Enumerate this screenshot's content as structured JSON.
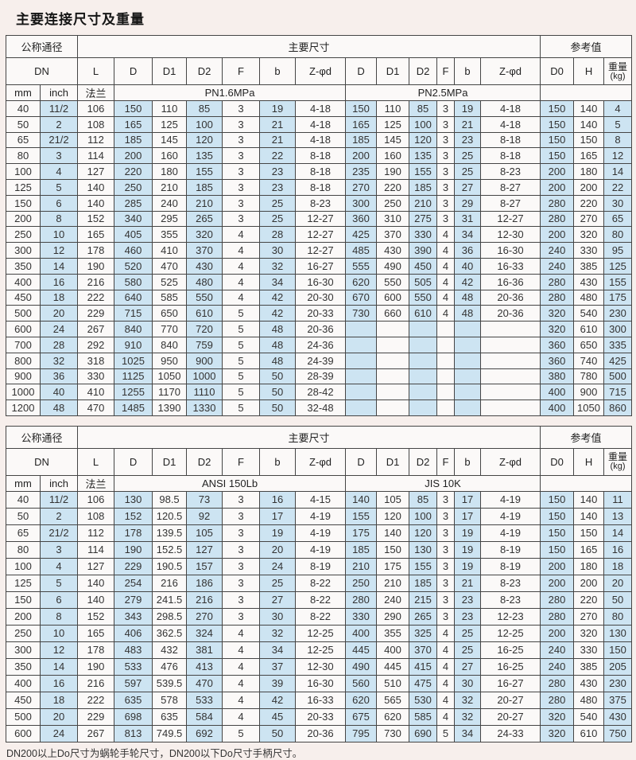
{
  "title": "主要连接尺寸及重量",
  "footnote": "DN200以上Do尺寸为蜗轮手轮尺寸，DN200以下Do尺寸手柄尺寸。",
  "colors": {
    "cell_blue": "#cde4f2",
    "cell_white": "#fbf9f8",
    "page_bg": "#f7efec",
    "border": "#454545"
  },
  "tables": [
    {
      "header": {
        "nominal_label": "公称通径",
        "main_label": "主要尺寸",
        "ref_label": "参考值",
        "dn_label": "DN",
        "mm_label": "mm",
        "inch_label": "inch",
        "flange_label": "法兰",
        "std1_label": "PN1.6MPa",
        "std2_label": "PN2.5MPa",
        "dim_labels": [
          "L",
          "D",
          "D1",
          "D2",
          "F",
          "b",
          "Z-φd",
          "D",
          "D1",
          "D2",
          "F",
          "b",
          "Z-φd",
          "D0",
          "H"
        ],
        "weight_label": "重量",
        "weight_unit": "(kg)"
      },
      "rows": [
        [
          "40",
          "11/2",
          "106",
          "150",
          "110",
          "85",
          "3",
          "19",
          "4-18",
          "150",
          "110",
          "85",
          "3",
          "19",
          "4-18",
          "150",
          "140",
          "4"
        ],
        [
          "50",
          "2",
          "108",
          "165",
          "125",
          "100",
          "3",
          "21",
          "4-18",
          "165",
          "125",
          "100",
          "3",
          "21",
          "4-18",
          "150",
          "140",
          "5"
        ],
        [
          "65",
          "21/2",
          "112",
          "185",
          "145",
          "120",
          "3",
          "21",
          "4-18",
          "185",
          "145",
          "120",
          "3",
          "23",
          "8-18",
          "150",
          "150",
          "8"
        ],
        [
          "80",
          "3",
          "114",
          "200",
          "160",
          "135",
          "3",
          "22",
          "8-18",
          "200",
          "160",
          "135",
          "3",
          "25",
          "8-18",
          "150",
          "165",
          "12"
        ],
        [
          "100",
          "4",
          "127",
          "220",
          "180",
          "155",
          "3",
          "23",
          "8-18",
          "235",
          "190",
          "155",
          "3",
          "25",
          "8-23",
          "200",
          "180",
          "14"
        ],
        [
          "125",
          "5",
          "140",
          "250",
          "210",
          "185",
          "3",
          "23",
          "8-18",
          "270",
          "220",
          "185",
          "3",
          "27",
          "8-27",
          "200",
          "200",
          "22"
        ],
        [
          "150",
          "6",
          "140",
          "285",
          "240",
          "210",
          "3",
          "25",
          "8-23",
          "300",
          "250",
          "210",
          "3",
          "29",
          "8-27",
          "280",
          "220",
          "30"
        ],
        [
          "200",
          "8",
          "152",
          "340",
          "295",
          "265",
          "3",
          "25",
          "12-27",
          "360",
          "310",
          "275",
          "3",
          "31",
          "12-27",
          "280",
          "270",
          "65"
        ],
        [
          "250",
          "10",
          "165",
          "405",
          "355",
          "320",
          "4",
          "28",
          "12-27",
          "425",
          "370",
          "330",
          "4",
          "34",
          "12-30",
          "200",
          "320",
          "80"
        ],
        [
          "300",
          "12",
          "178",
          "460",
          "410",
          "370",
          "4",
          "30",
          "12-27",
          "485",
          "430",
          "390",
          "4",
          "36",
          "16-30",
          "240",
          "330",
          "95"
        ],
        [
          "350",
          "14",
          "190",
          "520",
          "470",
          "430",
          "4",
          "32",
          "16-27",
          "555",
          "490",
          "450",
          "4",
          "40",
          "16-33",
          "240",
          "385",
          "125"
        ],
        [
          "400",
          "16",
          "216",
          "580",
          "525",
          "480",
          "4",
          "34",
          "16-30",
          "620",
          "550",
          "505",
          "4",
          "42",
          "16-36",
          "280",
          "430",
          "155"
        ],
        [
          "450",
          "18",
          "222",
          "640",
          "585",
          "550",
          "4",
          "42",
          "20-30",
          "670",
          "600",
          "550",
          "4",
          "48",
          "20-36",
          "280",
          "480",
          "175"
        ],
        [
          "500",
          "20",
          "229",
          "715",
          "650",
          "610",
          "5",
          "42",
          "20-33",
          "730",
          "660",
          "610",
          "4",
          "48",
          "20-36",
          "320",
          "540",
          "230"
        ],
        [
          "600",
          "24",
          "267",
          "840",
          "770",
          "720",
          "5",
          "48",
          "20-36",
          "",
          "",
          "",
          "",
          "",
          "",
          "320",
          "610",
          "300"
        ],
        [
          "700",
          "28",
          "292",
          "910",
          "840",
          "759",
          "5",
          "48",
          "24-36",
          "",
          "",
          "",
          "",
          "",
          "",
          "360",
          "650",
          "335"
        ],
        [
          "800",
          "32",
          "318",
          "1025",
          "950",
          "900",
          "5",
          "48",
          "24-39",
          "",
          "",
          "",
          "",
          "",
          "",
          "360",
          "740",
          "425"
        ],
        [
          "900",
          "36",
          "330",
          "1125",
          "1050",
          "1000",
          "5",
          "50",
          "28-39",
          "",
          "",
          "",
          "",
          "",
          "",
          "380",
          "780",
          "500"
        ],
        [
          "1000",
          "40",
          "410",
          "1255",
          "1170",
          "1110",
          "5",
          "50",
          "28-42",
          "",
          "",
          "",
          "",
          "",
          "",
          "400",
          "900",
          "715"
        ],
        [
          "1200",
          "48",
          "470",
          "1485",
          "1390",
          "1330",
          "5",
          "50",
          "32-48",
          "",
          "",
          "",
          "",
          "",
          "",
          "400",
          "1050",
          "860"
        ]
      ]
    },
    {
      "header": {
        "nominal_label": "公称通径",
        "main_label": "主要尺寸",
        "ref_label": "参考值",
        "dn_label": "DN",
        "mm_label": "mm",
        "inch_label": "inch",
        "flange_label": "法兰",
        "std1_label": "ANSI 150Lb",
        "std2_label": "JIS 10K",
        "dim_labels": [
          "L",
          "D",
          "D1",
          "D2",
          "F",
          "b",
          "Z-φd",
          "D",
          "D1",
          "D2",
          "F",
          "b",
          "Z-φd",
          "D0",
          "H"
        ],
        "weight_label": "重量",
        "weight_unit": "(kg)"
      },
      "rows": [
        [
          "40",
          "11/2",
          "106",
          "130",
          "98.5",
          "73",
          "3",
          "16",
          "4-15",
          "140",
          "105",
          "85",
          "3",
          "17",
          "4-19",
          "150",
          "140",
          "11"
        ],
        [
          "50",
          "2",
          "108",
          "152",
          "120.5",
          "92",
          "3",
          "17",
          "4-19",
          "155",
          "120",
          "100",
          "3",
          "17",
          "4-19",
          "150",
          "140",
          "13"
        ],
        [
          "65",
          "21/2",
          "112",
          "178",
          "139.5",
          "105",
          "3",
          "19",
          "4-19",
          "175",
          "140",
          "120",
          "3",
          "19",
          "4-19",
          "150",
          "150",
          "14"
        ],
        [
          "80",
          "3",
          "114",
          "190",
          "152.5",
          "127",
          "3",
          "20",
          "4-19",
          "185",
          "150",
          "130",
          "3",
          "19",
          "8-19",
          "150",
          "165",
          "16"
        ],
        [
          "100",
          "4",
          "127",
          "229",
          "190.5",
          "157",
          "3",
          "24",
          "8-19",
          "210",
          "175",
          "155",
          "3",
          "19",
          "8-19",
          "200",
          "180",
          "18"
        ],
        [
          "125",
          "5",
          "140",
          "254",
          "216",
          "186",
          "3",
          "25",
          "8-22",
          "250",
          "210",
          "185",
          "3",
          "21",
          "8-23",
          "200",
          "200",
          "20"
        ],
        [
          "150",
          "6",
          "140",
          "279",
          "241.5",
          "216",
          "3",
          "27",
          "8-22",
          "280",
          "240",
          "215",
          "3",
          "23",
          "8-23",
          "280",
          "220",
          "50"
        ],
        [
          "200",
          "8",
          "152",
          "343",
          "298.5",
          "270",
          "3",
          "30",
          "8-22",
          "330",
          "290",
          "265",
          "3",
          "23",
          "12-23",
          "280",
          "270",
          "80"
        ],
        [
          "250",
          "10",
          "165",
          "406",
          "362.5",
          "324",
          "4",
          "32",
          "12-25",
          "400",
          "355",
          "325",
          "4",
          "25",
          "12-25",
          "200",
          "320",
          "130"
        ],
        [
          "300",
          "12",
          "178",
          "483",
          "432",
          "381",
          "4",
          "34",
          "12-25",
          "445",
          "400",
          "370",
          "4",
          "25",
          "16-25",
          "240",
          "330",
          "150"
        ],
        [
          "350",
          "14",
          "190",
          "533",
          "476",
          "413",
          "4",
          "37",
          "12-30",
          "490",
          "445",
          "415",
          "4",
          "27",
          "16-25",
          "240",
          "385",
          "205"
        ],
        [
          "400",
          "16",
          "216",
          "597",
          "539.5",
          "470",
          "4",
          "39",
          "16-30",
          "560",
          "510",
          "475",
          "4",
          "30",
          "16-27",
          "280",
          "430",
          "230"
        ],
        [
          "450",
          "18",
          "222",
          "635",
          "578",
          "533",
          "4",
          "42",
          "16-33",
          "620",
          "565",
          "530",
          "4",
          "32",
          "20-27",
          "280",
          "480",
          "375"
        ],
        [
          "500",
          "20",
          "229",
          "698",
          "635",
          "584",
          "4",
          "45",
          "20-33",
          "675",
          "620",
          "585",
          "4",
          "32",
          "20-27",
          "320",
          "540",
          "430"
        ],
        [
          "600",
          "24",
          "267",
          "813",
          "749.5",
          "692",
          "5",
          "50",
          "20-36",
          "795",
          "730",
          "690",
          "5",
          "34",
          "24-33",
          "320",
          "610",
          "750"
        ]
      ]
    }
  ]
}
